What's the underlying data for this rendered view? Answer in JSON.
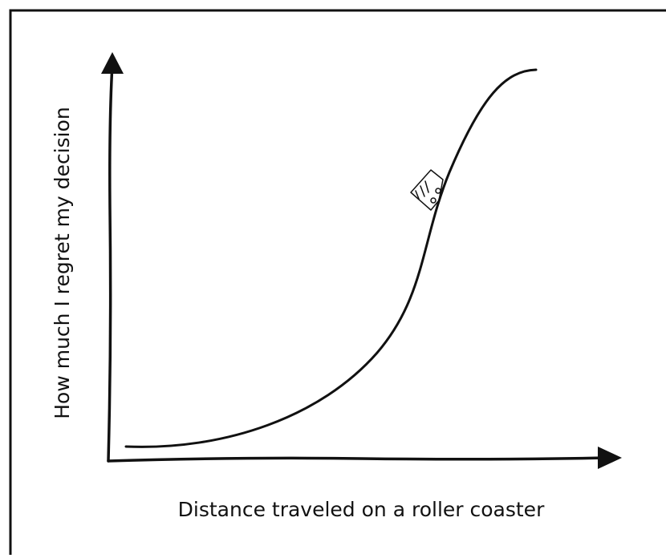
{
  "x_axis_label": "Distance traveled on a roller coaster",
  "y_axis_label": "How much I regret my decision"
}
